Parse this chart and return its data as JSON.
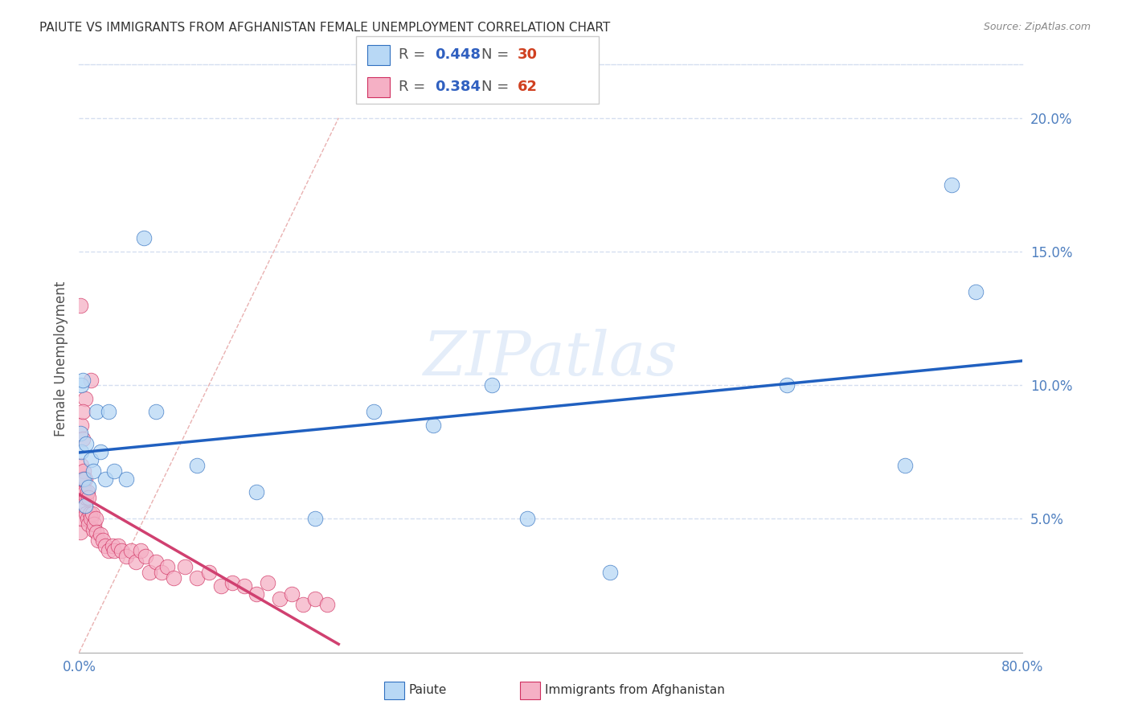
{
  "title": "PAIUTE VS IMMIGRANTS FROM AFGHANISTAN FEMALE UNEMPLOYMENT CORRELATION CHART",
  "source": "Source: ZipAtlas.com",
  "ylabel": "Female Unemployment",
  "xlim": [
    0,
    0.8
  ],
  "ylim": [
    0,
    0.22
  ],
  "xtick_positions": [
    0.0,
    0.1,
    0.2,
    0.3,
    0.4,
    0.5,
    0.6,
    0.7,
    0.8
  ],
  "xticklabels": [
    "0.0%",
    "",
    "",
    "",
    "",
    "",
    "",
    "",
    "80.0%"
  ],
  "ytick_positions": [
    0.0,
    0.05,
    0.1,
    0.15,
    0.2
  ],
  "yticklabels": [
    "",
    "5.0%",
    "10.0%",
    "15.0%",
    "20.0%"
  ],
  "legend_blue_r": "0.448",
  "legend_blue_n": "30",
  "legend_pink_r": "0.384",
  "legend_pink_n": "62",
  "legend_blue_label": "Paiute",
  "legend_pink_label": "Immigrants from Afghanistan",
  "blue_fill": "#b8d8f5",
  "blue_edge": "#3070c0",
  "pink_fill": "#f5b0c5",
  "pink_edge": "#d03060",
  "blue_line_color": "#2060c0",
  "pink_line_color": "#d04070",
  "diag_line_color": "#e09090",
  "watermark": "ZIPatlas",
  "tick_color": "#5080c0",
  "grid_color": "#d5dff0",
  "paiute_x": [
    0.001,
    0.002,
    0.002,
    0.003,
    0.004,
    0.005,
    0.006,
    0.008,
    0.01,
    0.012,
    0.015,
    0.018,
    0.022,
    0.025,
    0.03,
    0.04,
    0.055,
    0.065,
    0.1,
    0.15,
    0.2,
    0.25,
    0.3,
    0.35,
    0.38,
    0.45,
    0.6,
    0.7,
    0.74,
    0.76
  ],
  "paiute_y": [
    0.082,
    0.075,
    0.1,
    0.102,
    0.065,
    0.055,
    0.078,
    0.062,
    0.072,
    0.068,
    0.09,
    0.075,
    0.065,
    0.09,
    0.068,
    0.065,
    0.155,
    0.09,
    0.07,
    0.06,
    0.05,
    0.09,
    0.085,
    0.1,
    0.05,
    0.03,
    0.1,
    0.07,
    0.175,
    0.135
  ],
  "afghan_x": [
    0.001,
    0.001,
    0.001,
    0.002,
    0.002,
    0.002,
    0.003,
    0.003,
    0.003,
    0.004,
    0.004,
    0.005,
    0.005,
    0.005,
    0.006,
    0.006,
    0.007,
    0.007,
    0.008,
    0.008,
    0.009,
    0.01,
    0.011,
    0.012,
    0.013,
    0.014,
    0.015,
    0.016,
    0.018,
    0.02,
    0.022,
    0.025,
    0.028,
    0.03,
    0.033,
    0.036,
    0.04,
    0.044,
    0.048,
    0.052,
    0.056,
    0.06,
    0.065,
    0.07,
    0.075,
    0.08,
    0.09,
    0.1,
    0.11,
    0.12,
    0.13,
    0.14,
    0.15,
    0.16,
    0.17,
    0.18,
    0.19,
    0.2,
    0.21,
    0.01,
    0.005,
    0.003
  ],
  "afghan_y": [
    0.13,
    0.06,
    0.045,
    0.085,
    0.07,
    0.05,
    0.08,
    0.065,
    0.055,
    0.068,
    0.06,
    0.065,
    0.055,
    0.06,
    0.058,
    0.052,
    0.06,
    0.05,
    0.058,
    0.048,
    0.052,
    0.05,
    0.052,
    0.046,
    0.048,
    0.05,
    0.045,
    0.042,
    0.044,
    0.042,
    0.04,
    0.038,
    0.04,
    0.038,
    0.04,
    0.038,
    0.036,
    0.038,
    0.034,
    0.038,
    0.036,
    0.03,
    0.034,
    0.03,
    0.032,
    0.028,
    0.032,
    0.028,
    0.03,
    0.025,
    0.026,
    0.025,
    0.022,
    0.026,
    0.02,
    0.022,
    0.018,
    0.02,
    0.018,
    0.102,
    0.095,
    0.09
  ]
}
